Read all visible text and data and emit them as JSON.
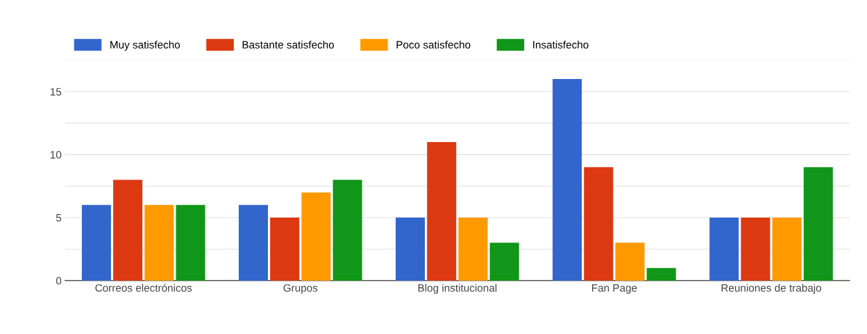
{
  "chart_data": {
    "type": "bar",
    "categories": [
      "Correos electrónicos",
      "Grupos",
      "Blog institucional",
      "Fan Page",
      "Reuniones de trabajo"
    ],
    "series": [
      {
        "name": "Muy satisfecho",
        "color": "#3366cc",
        "values": [
          6,
          6,
          5,
          16,
          5
        ]
      },
      {
        "name": "Bastante satisfecho",
        "color": "#dc3912",
        "values": [
          8,
          5,
          11,
          9,
          5
        ]
      },
      {
        "name": "Poco satisfecho",
        "color": "#ff9900",
        "values": [
          6,
          7,
          5,
          3,
          5
        ]
      },
      {
        "name": "Insatisfecho",
        "color": "#109618",
        "values": [
          6,
          8,
          3,
          1,
          9
        ]
      }
    ],
    "ylim": [
      0,
      17.5
    ],
    "yticks": [
      0,
      {
        "value": 2.5,
        "label": null
      },
      5,
      {
        "value": 7.5,
        "label": null
      },
      10,
      {
        "value": 12.5,
        "label": null
      },
      15,
      {
        "value": 17.5,
        "label": null
      }
    ],
    "grid": "y",
    "legend": "top left"
  }
}
